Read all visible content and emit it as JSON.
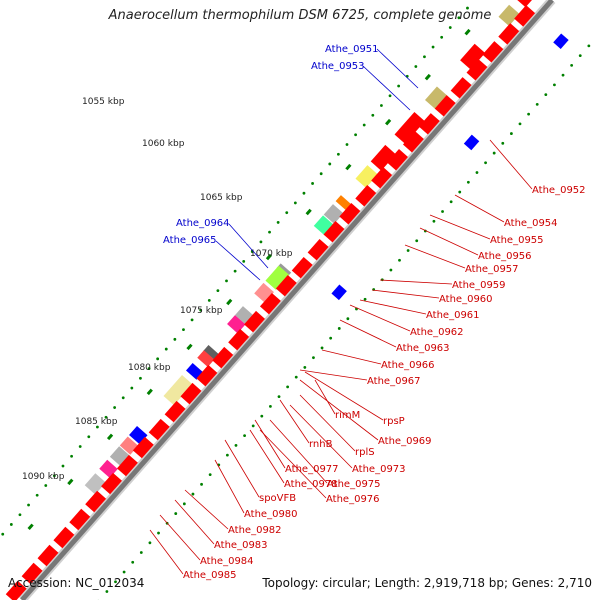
{
  "title": "Anaerocellum thermophilum DSM 6725, complete genome",
  "footer": {
    "accession": "Accession: NC_012034",
    "summary": "Topology: circular; Length: 2,919,718 bp; Genes: 2,710"
  },
  "colors": {
    "backbone": "#777777",
    "forward_gene": "#ff0000",
    "reverse_gene": "#ff0000",
    "blue_gene": "#0000ff",
    "label_red": "#cc0000",
    "label_blue": "#0000cc",
    "dot_green": "#008000"
  },
  "scale_labels": [
    "1055 kbp",
    "1060 kbp",
    "1065 kbp",
    "1070 kbp",
    "1075 kbp",
    "1080 kbp",
    "1085 kbp",
    "1090 kbp"
  ],
  "blue_labels": [
    "Athe_0951",
    "Athe_0953",
    "Athe_0964",
    "Athe_0965"
  ],
  "red_labels": [
    "Athe_0952",
    "Athe_0954",
    "Athe_0955",
    "Athe_0956",
    "Athe_0957",
    "Athe_0959",
    "Athe_0960",
    "Athe_0961",
    "Athe_0962",
    "Athe_0963",
    "Athe_0966",
    "Athe_0967",
    "rimM",
    "rpsP",
    "Athe_0969",
    "rnhB",
    "rplS",
    "Athe_0973",
    "Athe_0977",
    "Athe_0978",
    "Athe_0975",
    "Athe_0976",
    "spoVFB",
    "Athe_0980",
    "Athe_0982",
    "Athe_0983",
    "Athe_0984",
    "Athe_0985"
  ]
}
